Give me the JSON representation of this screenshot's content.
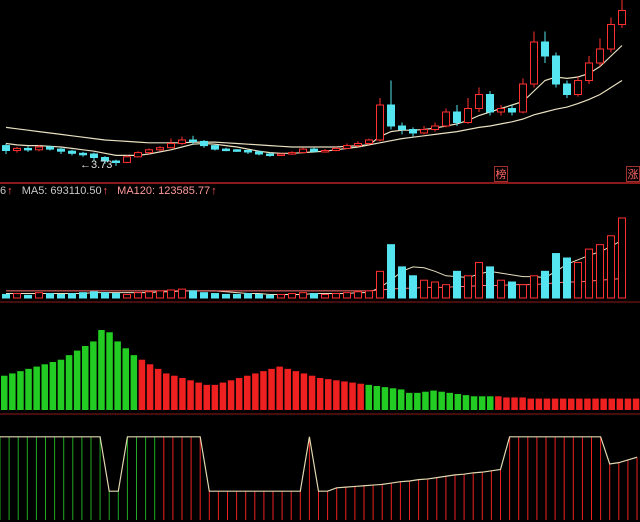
{
  "colors": {
    "up": "#ff3030",
    "down": "#55e5f0",
    "ma_line": "#e8e0c0",
    "divider": "#8a1a1a",
    "macd_red": "#ee2020",
    "macd_green": "#22cc22",
    "indicator_line": "#e0d8b0"
  },
  "price_panel": {
    "low_marker": "←3.73",
    "badges": [
      "榜",
      "涨"
    ]
  },
  "volume_legend": {
    "prefix": "6",
    "prefix_arrow": "↑",
    "ma5_text": "MA5: 693110.50",
    "ma5_arrow": "↑",
    "ma120_text": "MA120: 123585.77",
    "ma120_arrow": "↑"
  },
  "chart_data": [
    {
      "type": "candlestick",
      "candles": [
        [
          4.02,
          3.95,
          4.05,
          3.9
        ],
        [
          3.95,
          3.98,
          4.0,
          3.92
        ],
        [
          3.98,
          3.96,
          4.01,
          3.93
        ],
        [
          3.96,
          4.0,
          4.03,
          3.94
        ],
        [
          4.0,
          3.97,
          4.02,
          3.95
        ],
        [
          3.97,
          3.94,
          3.99,
          3.9
        ],
        [
          3.94,
          3.91,
          3.96,
          3.88
        ],
        [
          3.91,
          3.9,
          3.93,
          3.86
        ],
        [
          3.9,
          3.85,
          3.92,
          3.8
        ],
        [
          3.85,
          3.8,
          3.87,
          3.76
        ],
        [
          3.8,
          3.78,
          3.82,
          3.73
        ],
        [
          3.78,
          3.86,
          3.88,
          3.77
        ],
        [
          3.86,
          3.92,
          3.94,
          3.85
        ],
        [
          3.92,
          3.96,
          3.98,
          3.9
        ],
        [
          3.96,
          3.99,
          4.01,
          3.94
        ],
        [
          3.99,
          4.05,
          4.12,
          3.98
        ],
        [
          4.05,
          4.1,
          4.15,
          4.03
        ],
        [
          4.1,
          4.08,
          4.16,
          4.04
        ],
        [
          4.08,
          4.02,
          4.1,
          3.99
        ],
        [
          4.02,
          3.97,
          4.03,
          3.95
        ],
        [
          3.97,
          3.96,
          3.99,
          3.94
        ],
        [
          3.96,
          3.95,
          3.97,
          3.93
        ],
        [
          3.95,
          3.93,
          3.96,
          3.9
        ],
        [
          3.93,
          3.9,
          3.95,
          3.88
        ],
        [
          3.9,
          3.89,
          3.92,
          3.86
        ],
        [
          3.89,
          3.9,
          3.91,
          3.87
        ],
        [
          3.9,
          3.92,
          3.94,
          3.89
        ],
        [
          3.92,
          3.97,
          3.99,
          3.91
        ],
        [
          3.97,
          3.94,
          3.99,
          3.92
        ],
        [
          3.94,
          3.95,
          3.97,
          3.92
        ],
        [
          3.95,
          3.98,
          4.0,
          3.94
        ],
        [
          3.98,
          4.02,
          4.05,
          3.97
        ],
        [
          4.02,
          4.05,
          4.08,
          4.0
        ],
        [
          4.05,
          4.1,
          4.12,
          4.03
        ],
        [
          4.1,
          4.6,
          4.7,
          4.08
        ],
        [
          4.6,
          4.3,
          4.95,
          4.25
        ],
        [
          4.3,
          4.25,
          4.35,
          4.18
        ],
        [
          4.25,
          4.2,
          4.28,
          4.15
        ],
        [
          4.2,
          4.25,
          4.3,
          4.18
        ],
        [
          4.25,
          4.3,
          4.35,
          4.22
        ],
        [
          4.3,
          4.5,
          4.55,
          4.28
        ],
        [
          4.5,
          4.35,
          4.6,
          4.3
        ],
        [
          4.35,
          4.55,
          4.7,
          4.33
        ],
        [
          4.55,
          4.75,
          4.85,
          4.5
        ],
        [
          4.75,
          4.5,
          4.8,
          4.45
        ],
        [
          4.5,
          4.55,
          4.6,
          4.45
        ],
        [
          4.55,
          4.5,
          4.6,
          4.45
        ],
        [
          4.5,
          4.9,
          4.98,
          4.48
        ],
        [
          4.9,
          5.5,
          5.65,
          4.85
        ],
        [
          5.5,
          5.3,
          5.65,
          5.2
        ],
        [
          5.3,
          4.9,
          5.35,
          4.85
        ],
        [
          4.9,
          4.75,
          4.95,
          4.7
        ],
        [
          4.75,
          4.95,
          5.0,
          4.72
        ],
        [
          4.95,
          5.2,
          5.3,
          4.9
        ],
        [
          5.2,
          5.4,
          5.55,
          5.15
        ],
        [
          5.4,
          5.75,
          5.85,
          5.35
        ],
        [
          5.75,
          5.95,
          6.1,
          5.7
        ]
      ],
      "moving_averages": [
        {
          "values": [
            4.28,
            4.26,
            4.24,
            4.22,
            4.2,
            4.18,
            4.16,
            4.14,
            4.12,
            4.1,
            4.09,
            4.08,
            4.07,
            4.06,
            4.06,
            4.06,
            4.06,
            4.07,
            4.07,
            4.07,
            4.06,
            4.05,
            4.04,
            4.03,
            4.02,
            4.01,
            4.0,
            4.0,
            4.0,
            4.0,
            4.0,
            4.01,
            4.02,
            4.03,
            4.06,
            4.09,
            4.12,
            4.14,
            4.16,
            4.18,
            4.2,
            4.22,
            4.25,
            4.28,
            4.3,
            4.33,
            4.36,
            4.4,
            4.46,
            4.5,
            4.54,
            4.57,
            4.62,
            4.68,
            4.75,
            4.85,
            4.95
          ]
        },
        {
          "values": [
            4.05,
            4.03,
            4.02,
            4.02,
            4.01,
            4.0,
            3.98,
            3.96,
            3.94,
            3.91,
            3.88,
            3.88,
            3.88,
            3.9,
            3.93,
            3.96,
            4.0,
            4.04,
            4.05,
            4.04,
            4.02,
            4.0,
            3.97,
            3.94,
            3.92,
            3.91,
            3.91,
            3.92,
            3.93,
            3.94,
            3.96,
            3.98,
            4.0,
            4.03,
            4.15,
            4.22,
            4.24,
            4.24,
            4.25,
            4.27,
            4.3,
            4.33,
            4.38,
            4.45,
            4.5,
            4.55,
            4.6,
            4.65,
            4.8,
            4.95,
            5.0,
            4.98,
            5.0,
            5.05,
            5.15,
            5.3,
            5.45
          ]
        }
      ]
    },
    {
      "type": "bar",
      "volume": [
        4,
        5,
        3,
        6,
        5,
        4,
        5,
        6,
        7,
        6,
        5,
        4,
        6,
        7,
        8,
        9,
        10,
        8,
        6,
        5,
        4,
        4,
        5,
        4,
        3,
        4,
        5,
        6,
        5,
        4,
        5,
        6,
        7,
        8,
        30,
        60,
        35,
        25,
        20,
        18,
        15,
        30,
        25,
        40,
        35,
        20,
        18,
        15,
        25,
        30,
        50,
        45,
        40,
        55,
        60,
        70,
        90
      ],
      "ma_lines": [
        {
          "values": [
            5,
            5,
            5,
            5,
            5,
            5,
            5,
            5,
            6,
            6,
            6,
            6,
            6,
            6,
            7,
            7,
            8,
            8,
            8,
            8,
            7,
            6,
            5,
            5,
            4,
            4,
            4,
            4,
            5,
            5,
            5,
            5,
            6,
            6,
            12,
            20,
            30,
            35,
            34,
            30,
            25,
            24,
            23,
            27,
            30,
            28,
            26,
            24,
            24,
            23,
            30,
            38,
            43,
            48,
            52,
            58,
            65
          ]
        },
        {
          "values": [
            8,
            8,
            8,
            8,
            8,
            8,
            8,
            8,
            8,
            8,
            8,
            8,
            8,
            8,
            8,
            8,
            8,
            8,
            8,
            8,
            8,
            8,
            8,
            8,
            8,
            8,
            8,
            8,
            8,
            8,
            8,
            8,
            8,
            8,
            9,
            10,
            11,
            11,
            12,
            12,
            12,
            13,
            13,
            14,
            14,
            14,
            15,
            15,
            15,
            16,
            17,
            18,
            18,
            19,
            20,
            21,
            22
          ]
        }
      ]
    },
    {
      "type": "bar",
      "macd": [
        0.3,
        0.32,
        0.34,
        0.36,
        0.38,
        0.4,
        0.42,
        0.44,
        0.48,
        0.52,
        0.56,
        0.6,
        0.7,
        0.68,
        0.6,
        0.54,
        0.48,
        0.44,
        0.4,
        0.36,
        0.32,
        0.3,
        0.28,
        0.26,
        0.24,
        0.22,
        0.22,
        0.24,
        0.26,
        0.28,
        0.3,
        0.32,
        0.34,
        0.36,
        0.38,
        0.36,
        0.34,
        0.32,
        0.3,
        0.28,
        0.27,
        0.26,
        0.25,
        0.24,
        0.23,
        0.22,
        0.21,
        0.2,
        0.19,
        0.18,
        0.15,
        0.15,
        0.16,
        0.17,
        0.16,
        0.15,
        0.14,
        0.13,
        0.12,
        0.12,
        0.12,
        0.12,
        0.11,
        0.11,
        0.11,
        0.1,
        0.1,
        0.1,
        0.1,
        0.1,
        0.1,
        0.1,
        0.1,
        0.1,
        0.1,
        0.1,
        0.1,
        0.1,
        0.1
      ],
      "macd_sign": [
        "g",
        "g",
        "g",
        "g",
        "g",
        "g",
        "g",
        "g",
        "g",
        "g",
        "g",
        "g",
        "g",
        "g",
        "g",
        "g",
        "g",
        "r",
        "r",
        "r",
        "r",
        "r",
        "r",
        "r",
        "r",
        "r",
        "r",
        "r",
        "r",
        "r",
        "r",
        "r",
        "r",
        "r",
        "r",
        "r",
        "r",
        "r",
        "r",
        "r",
        "r",
        "r",
        "r",
        "r",
        "r",
        "g",
        "g",
        "g",
        "g",
        "g",
        "g",
        "g",
        "g",
        "g",
        "g",
        "g",
        "g",
        "g",
        "g",
        "g",
        "g",
        "r",
        "r",
        "r",
        "r",
        "r",
        "r",
        "r",
        "r",
        "r",
        "r",
        "r",
        "r",
        "r",
        "r",
        "r",
        "r",
        "r",
        "r"
      ]
    },
    {
      "type": "line",
      "indicator": [
        0.9,
        0.9,
        0.9,
        0.9,
        0.9,
        0.9,
        0.9,
        0.9,
        0.9,
        0.9,
        0.9,
        0.9,
        0.1,
        0.1,
        0.9,
        0.9,
        0.9,
        0.9,
        0.9,
        0.9,
        0.9,
        0.9,
        0.9,
        0.1,
        0.1,
        0.1,
        0.1,
        0.1,
        0.1,
        0.1,
        0.1,
        0.1,
        0.1,
        0.1,
        0.9,
        0.1,
        0.1,
        0.15,
        0.16,
        0.17,
        0.18,
        0.19,
        0.2,
        0.22,
        0.24,
        0.25,
        0.27,
        0.28,
        0.3,
        0.32,
        0.34,
        0.35,
        0.37,
        0.38,
        0.4,
        0.42,
        0.9,
        0.9,
        0.9,
        0.9,
        0.9,
        0.9,
        0.9,
        0.9,
        0.9,
        0.9,
        0.9,
        0.5,
        0.52,
        0.56,
        0.6
      ]
    }
  ]
}
